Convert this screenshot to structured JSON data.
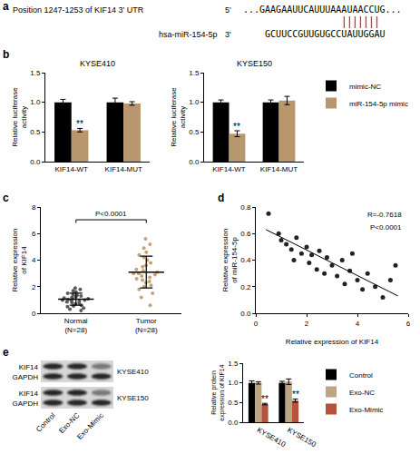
{
  "panel_labels": [
    "a",
    "b",
    "c",
    "d",
    "e"
  ],
  "sequence": {
    "target_label": "Position 1247-1253 of KIF14 3' UTR",
    "target_end": "5'",
    "target": "...GAAGAAUUCAUUUAAAUAACCUG...",
    "mirna_label": "hsa-miR-154-5p",
    "mirna_end": "3'",
    "mirna": "GCUUCCGUUGUGCCUAUUGGAU"
  },
  "blot": {
    "proteins": [
      "KIF14",
      "GAPDH"
    ],
    "cell_lines": [
      "KYSE410",
      "KYSE150"
    ],
    "lanes": [
      "Control",
      "Exo-NC",
      "Exo-Mimic"
    ]
  },
  "chart_data": [
    {
      "type": "bar",
      "title": "KYSE410",
      "ylabel": "Relative luciferase activity",
      "categories": [
        "KIF14-WT",
        "KIF14-MUT"
      ],
      "series": [
        {
          "name": "mimic-NC",
          "color": "#000000",
          "values": [
            1.0,
            1.0
          ],
          "error": [
            0.05,
            0.07
          ]
        },
        {
          "name": "miR-154-5p mimic",
          "color": "#b8966e",
          "values": [
            0.53,
            0.98
          ],
          "error": [
            0.03,
            0.03
          ]
        }
      ],
      "ylim": [
        0,
        1.5
      ],
      "yticks": [
        {
          "value": 0,
          "label": "0.0"
        },
        0.5,
        {
          "value": 1,
          "label": "1.0"
        },
        1.5
      ],
      "annotations": [
        {
          "category": "KIF14-WT",
          "series": "miR-154-5p mimic",
          "text": "**"
        }
      ],
      "legend": "right",
      "grid": false
    },
    {
      "type": "bar",
      "title": "KYSE150",
      "ylabel": "Relative luciferase activity",
      "categories": [
        "KIF14-WT",
        "KIF14-MUT"
      ],
      "series": [
        {
          "name": "mimic-NC",
          "color": "#000000",
          "values": [
            1.0,
            1.0
          ],
          "error": [
            0.04,
            0.04
          ]
        },
        {
          "name": "miR-154-5p mimic",
          "color": "#b8966e",
          "values": [
            0.47,
            1.03
          ],
          "error": [
            0.05,
            0.07
          ]
        }
      ],
      "ylim": [
        0,
        1.5
      ],
      "yticks": [
        {
          "value": 0,
          "label": "0.0"
        },
        0.5,
        {
          "value": 1,
          "label": "1.0"
        },
        1.5
      ],
      "annotations": [
        {
          "category": "KIF14-WT",
          "series": "miR-154-5p mimic",
          "text": "**"
        }
      ],
      "grid": false
    },
    {
      "type": "strip",
      "ylabel": "Relative expression of KIF14",
      "categories": [
        "Normal\n(N=28)",
        "Tumor\n(N=28)"
      ],
      "colors": [
        "#5a5a5a",
        "#c4a27a"
      ],
      "values": [
        [
          0.2,
          0.3,
          0.4,
          0.5,
          0.55,
          0.6,
          0.7,
          0.75,
          0.8,
          0.85,
          0.9,
          0.95,
          1.0,
          1.0,
          1.05,
          1.1,
          1.1,
          1.15,
          1.2,
          1.25,
          1.3,
          1.35,
          1.4,
          1.5,
          1.6,
          1.7,
          1.8,
          1.9
        ],
        [
          0.6,
          1.2,
          1.5,
          1.8,
          2.0,
          2.1,
          2.3,
          2.4,
          2.5,
          2.6,
          2.7,
          2.8,
          2.9,
          3.0,
          3.0,
          3.1,
          3.2,
          3.3,
          3.5,
          3.6,
          3.8,
          4.0,
          4.2,
          4.4,
          4.6,
          4.9,
          5.2,
          5.6
        ]
      ],
      "mean": [
        1.06,
        3.1
      ],
      "error": [
        0.45,
        1.2
      ],
      "ylim": [
        0,
        8
      ],
      "yticks": [
        0,
        2,
        4,
        6,
        8
      ],
      "annotations": [
        {
          "text": "P<0.0001",
          "from": "Normal\n(N=28)",
          "to": "Tumor\n(N=28)"
        }
      ],
      "grid": false
    },
    {
      "type": "scatter",
      "xlabel": "Relative expression of KIF14",
      "ylabel": "Relative expression of miR-154-5p",
      "x": [
        0.5,
        0.9,
        1.0,
        1.2,
        1.4,
        1.5,
        1.6,
        1.8,
        2.0,
        2.1,
        2.2,
        2.4,
        2.5,
        2.7,
        2.8,
        3.0,
        3.2,
        3.4,
        3.5,
        3.7,
        3.8,
        4.0,
        4.2,
        4.4,
        4.7,
        5.0,
        5.3,
        5.5
      ],
      "values": [
        0.75,
        0.6,
        0.55,
        0.52,
        0.48,
        0.4,
        0.57,
        0.45,
        0.5,
        0.38,
        0.44,
        0.33,
        0.47,
        0.3,
        0.42,
        0.36,
        0.28,
        0.4,
        0.22,
        0.32,
        0.45,
        0.25,
        0.18,
        0.3,
        0.2,
        0.12,
        0.25,
        0.36
      ],
      "color": "#222222",
      "fit_line": {
        "x": [
          0.4,
          5.6
        ],
        "y": [
          0.63,
          0.13
        ]
      },
      "xlim": [
        0,
        6
      ],
      "xticks": [
        0,
        2,
        4,
        6
      ],
      "ylim": [
        0,
        0.8
      ],
      "yticks": [
        {
          "value": 0,
          "label": "0.0"
        },
        0.2,
        0.4,
        0.6,
        0.8
      ],
      "annotations": [
        {
          "text": "R=-0.7618"
        },
        {
          "text": "P<0.0001"
        }
      ],
      "grid": false
    },
    {
      "type": "bar",
      "ylabel": "Relative protein expression of KIF14",
      "categories": [
        "KYSE410",
        "KYSE150"
      ],
      "series": [
        {
          "name": "Control",
          "color": "#000000",
          "values": [
            1.0,
            1.0
          ],
          "error": [
            0.05,
            0.04
          ]
        },
        {
          "name": "Exo-NC",
          "color": "#bda584",
          "values": [
            1.0,
            1.03
          ],
          "error": [
            0.03,
            0.07
          ]
        },
        {
          "name": "Exo-Mimic",
          "color": "#b5533c",
          "values": [
            0.46,
            0.55
          ],
          "error": [
            0.02,
            0.04
          ]
        }
      ],
      "ylim": [
        0,
        1.5
      ],
      "yticks": [
        {
          "value": 0,
          "label": "0.0"
        },
        0.5,
        {
          "value": 1,
          "label": "1.0"
        },
        1.5
      ],
      "annotations": [
        {
          "category": "KYSE410",
          "series": "Exo-Mimic",
          "text": "**"
        },
        {
          "category": "KYSE150",
          "series": "Exo-Mimic",
          "text": "**"
        }
      ],
      "legend": "right",
      "grid": false
    }
  ]
}
